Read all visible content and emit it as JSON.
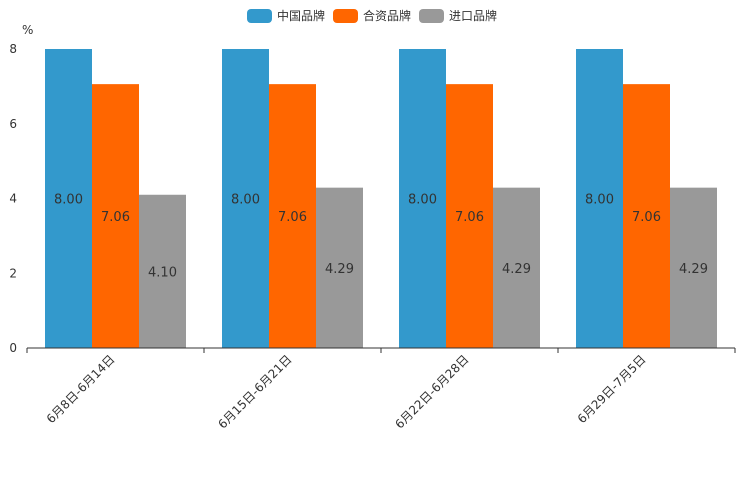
{
  "chart_data": {
    "type": "bar",
    "y_unit": "%",
    "categories": [
      "6月8日-6月14日",
      "6月15日-6月21日",
      "6月22日-6月28日",
      "6月29日-7月5日"
    ],
    "series": [
      {
        "name": "中国品牌",
        "color": "#3399cc",
        "values": [
          8.0,
          8.0,
          8.0,
          8.0
        ],
        "labels": [
          "8.00",
          "8.00",
          "8.00",
          "8.00"
        ]
      },
      {
        "name": "合资品牌",
        "color": "#ff6600",
        "values": [
          7.06,
          7.06,
          7.06,
          7.06
        ],
        "labels": [
          "7.06",
          "7.06",
          "7.06",
          "7.06"
        ]
      },
      {
        "name": "进口品牌",
        "color": "#999999",
        "values": [
          4.1,
          4.29,
          4.29,
          4.29
        ],
        "labels": [
          "4.10",
          "4.29",
          "4.29",
          "4.29"
        ]
      }
    ],
    "ylim": [
      0,
      8
    ],
    "yticks": [
      "0",
      "2",
      "4",
      "6",
      "8"
    ],
    "legend_position": "top-center"
  }
}
